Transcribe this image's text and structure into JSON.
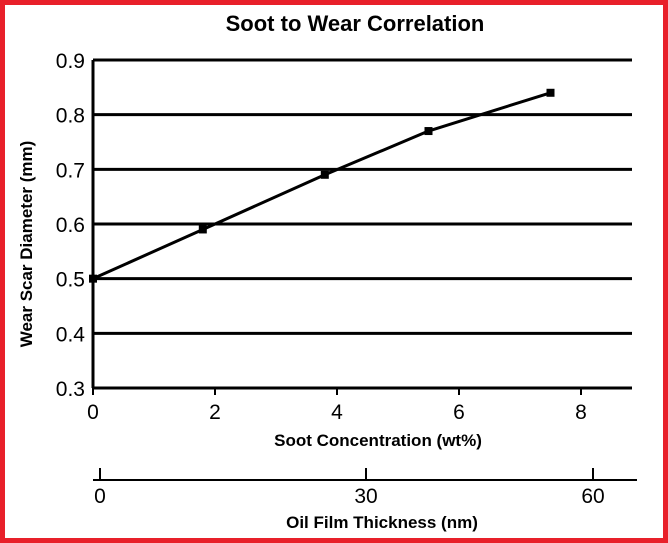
{
  "chart_data": {
    "type": "line",
    "title": "Soot to Wear Correlation",
    "xlabel": "Soot Concentration (wt%)",
    "ylabel": "Wear Scar Diameter (mm)",
    "xlim": [
      0,
      9
    ],
    "ylim": [
      0.3,
      0.9
    ],
    "x_ticks": [
      "0",
      "2",
      "4",
      "6",
      "8"
    ],
    "y_ticks": [
      "0.3",
      "0.4",
      "0.5",
      "0.6",
      "0.7",
      "0.8",
      "0.9"
    ],
    "grid": "horizontal",
    "series": [
      {
        "x": [
          0,
          1.8,
          3.8,
          5.5,
          7.5
        ],
        "y": [
          0.5,
          0.59,
          0.69,
          0.77,
          0.84
        ]
      }
    ],
    "secondary_x_axis": {
      "label": "Oil Film Thickness (nm)",
      "ticks": [
        "0",
        "30",
        "60"
      ]
    },
    "frame_color": "#e8202a",
    "line_color": "#000000"
  }
}
